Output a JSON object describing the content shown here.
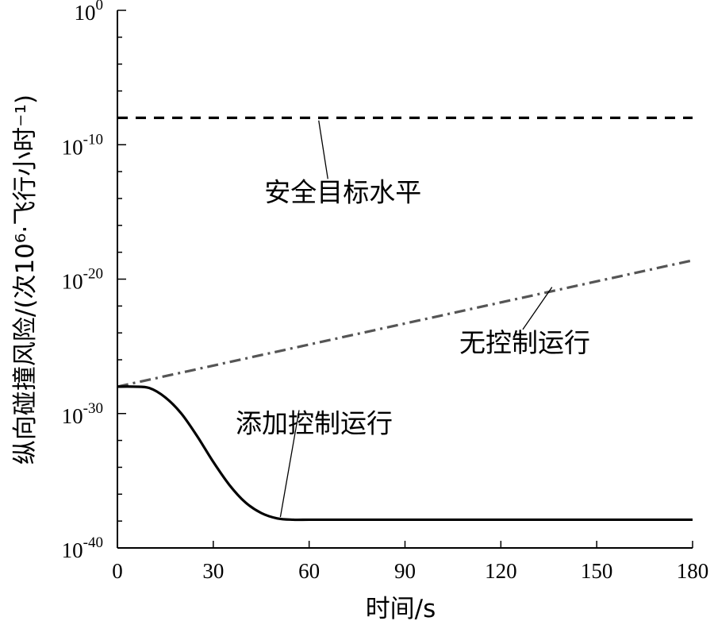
{
  "chart_data": {
    "type": "line",
    "title": "",
    "xlabel": "时间/s",
    "ylabel": "纵向碰撞风险/(次10⁶·飞行小时⁻¹)",
    "xlim": [
      0,
      180
    ],
    "ylim_exponent": [
      -40,
      0
    ],
    "y_scale": "log",
    "x_ticks": [
      0,
      30,
      60,
      90,
      120,
      150,
      180
    ],
    "y_ticks": [
      {
        "base": "10",
        "exp": "0"
      },
      {
        "base": "10",
        "exp": "-10"
      },
      {
        "base": "10",
        "exp": "-20"
      },
      {
        "base": "10",
        "exp": "-30"
      },
      {
        "base": "10",
        "exp": "-40"
      }
    ],
    "grid": false,
    "legend": "none",
    "series": [
      {
        "name": "安全目标水平",
        "style": "dashed",
        "color": "#000000",
        "x": [
          0,
          180
        ],
        "y_exponent": [
          -8,
          -8
        ]
      },
      {
        "name": "无控制运行",
        "style": "dash-dot",
        "color": "#555555",
        "x": [
          0,
          180
        ],
        "y_exponent": [
          -28,
          -18.6
        ]
      },
      {
        "name": "添加控制运行",
        "style": "solid",
        "color": "#000000",
        "x": [
          0,
          5,
          10,
          15,
          20,
          25,
          30,
          35,
          40,
          45,
          50,
          55,
          60,
          90,
          120,
          150,
          180
        ],
        "y_exponent": [
          -28,
          -28,
          -28.1,
          -28.8,
          -30.0,
          -31.7,
          -33.6,
          -35.3,
          -36.6,
          -37.4,
          -37.8,
          -37.9,
          -37.9,
          -37.9,
          -37.9,
          -37.9,
          -37.9
        ]
      }
    ],
    "annotations": [
      {
        "text": "安全目标水平",
        "series": 0,
        "x_text": 46,
        "y_exp_text": -14.2,
        "x_point": 63,
        "y_exp_point": -8.2
      },
      {
        "text": "无控制运行",
        "series": 1,
        "x_text": 107,
        "y_exp_text": -25.4,
        "x_point": 136,
        "y_exp_point": -20.6
      },
      {
        "text": "添加控制运行",
        "series": 2,
        "x_text": 37,
        "y_exp_text": -31.4,
        "x_point": 51,
        "y_exp_point": -37.7
      }
    ]
  }
}
